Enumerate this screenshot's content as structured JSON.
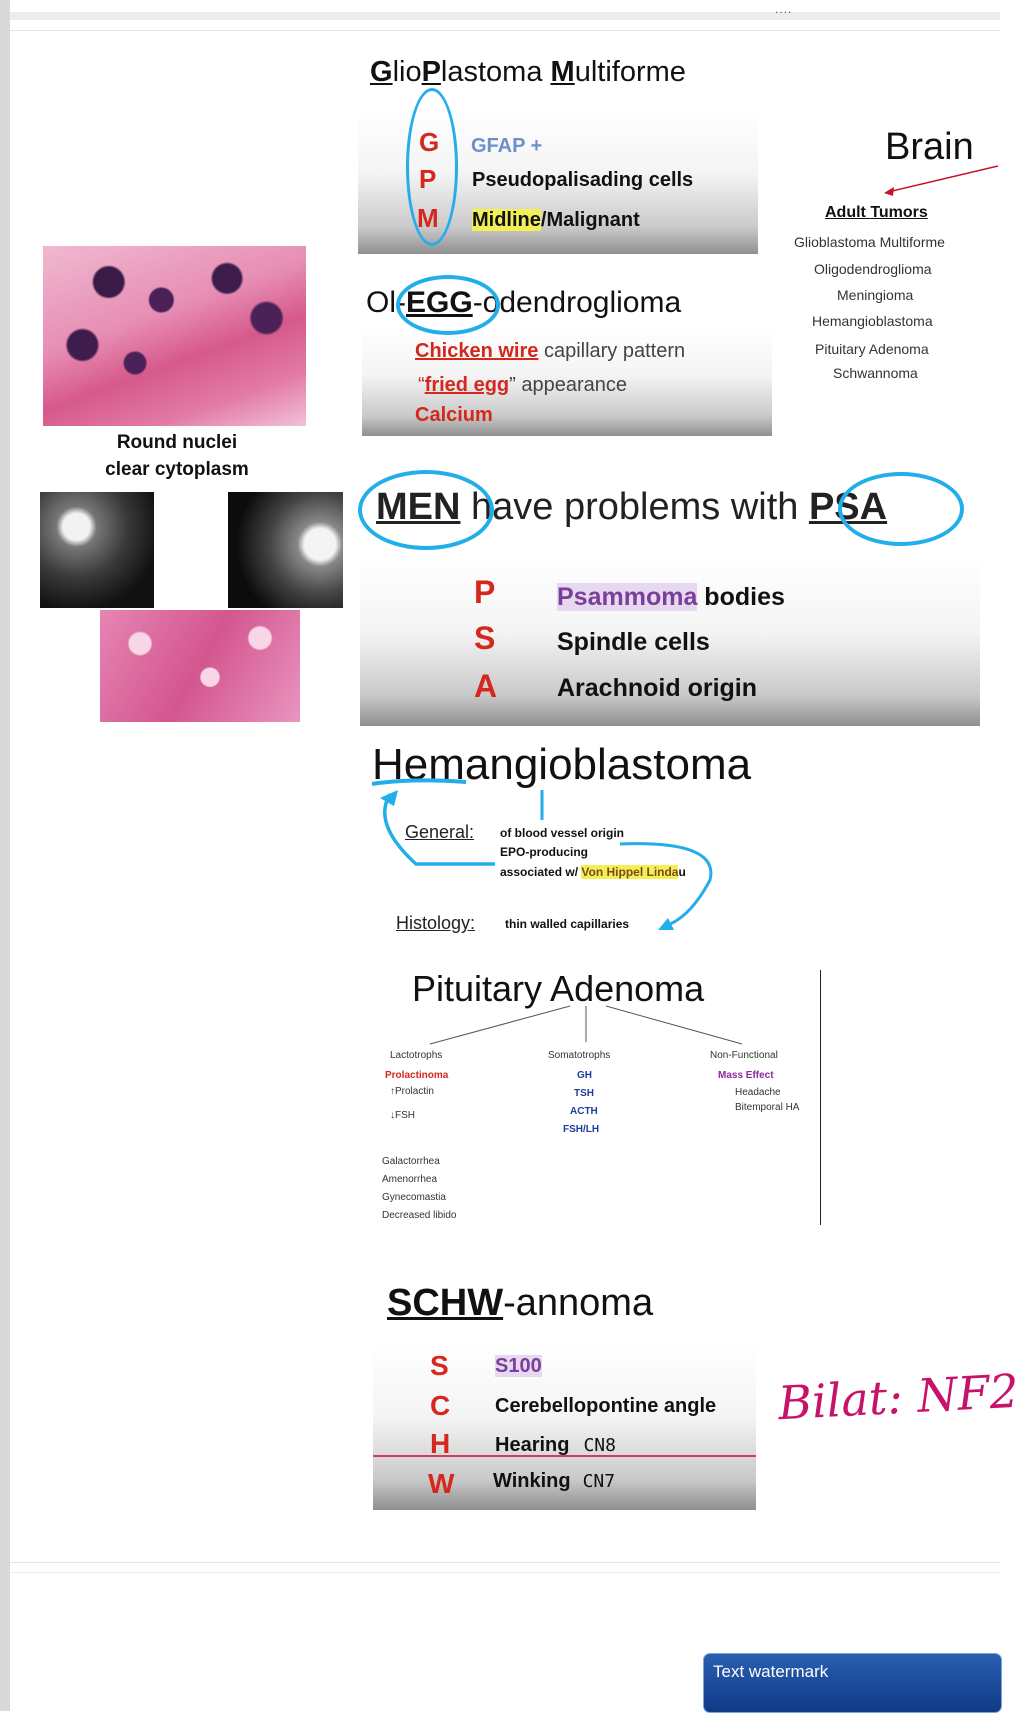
{
  "gbm": {
    "title_parts": [
      "G",
      "lio",
      "P",
      "lastoma ",
      "M",
      "ultiforme"
    ],
    "rows": [
      {
        "letter": "G",
        "text": "GFAP +"
      },
      {
        "letter": "P",
        "text": "Pseudopalisading cells"
      },
      {
        "letter": "M",
        "text_highlight": "Midline",
        "text_rest": "/Malignant"
      }
    ]
  },
  "brain_panel": {
    "heading": "Brain",
    "subheading": "Adult Tumors",
    "items": [
      "Glioblastoma Multiforme",
      "Oligodendroglioma",
      "Meningioma",
      "Hemangioblastoma",
      "Pituitary Adenoma",
      "Schwannoma"
    ]
  },
  "oligo": {
    "title_pre": "Ol-",
    "title_egg": "EGG",
    "title_post": "-odendroglioma",
    "line1_red": "Chicken wire",
    "line1_rest": " capillary pattern",
    "line2_open": "“",
    "line2_red": "fried egg",
    "line2_rest": "” appearance",
    "line3_red": "Calcium"
  },
  "left_caption": {
    "line1": "Round nuclei",
    "line2": "clear cytoplasm"
  },
  "meningioma": {
    "title_men": "MEN",
    "title_mid": " have problems with ",
    "title_psa": "PSA",
    "rows": [
      {
        "letter": "P",
        "word_hl": "Psammoma",
        "word_rest": " bodies"
      },
      {
        "letter": "S",
        "text": "Spindle cells"
      },
      {
        "letter": "A",
        "text": "Arachnoid origin"
      }
    ]
  },
  "hemangio": {
    "title": "Hemangioblastoma",
    "general_label": "General:",
    "general_lines": [
      "of blood vessel origin",
      "EPO-producing"
    ],
    "vhl_prefix": "associated w/ ",
    "vhl_hl": "Von Hippel Linda",
    "vhl_suffix": "u",
    "histology_label": "Histology:",
    "histology_text": "thin walled capillaries"
  },
  "pituitary": {
    "title": "Pituitary Adenoma",
    "col1": {
      "header": "Lactotrophs",
      "sub": "Prolactinoma",
      "a": "Prolactin",
      "b": "FSH"
    },
    "col2": {
      "header": "Somatotrophs",
      "items": [
        "GH",
        "TSH",
        "ACTH",
        "FSH/LH"
      ]
    },
    "col3": {
      "header": "Non-Functional",
      "sub": "Mass Effect",
      "items": [
        "Headache",
        "Bitemporal HA"
      ]
    },
    "symptoms": [
      "Galactorrhea",
      "Amenorrhea",
      "Gynecomastia",
      "Decreased libido"
    ],
    "arrow_up": "↑",
    "arrow_down": "↓"
  },
  "schwannoma": {
    "title_bold": "SCHW",
    "title_rest": "-annoma",
    "rows": [
      {
        "letter": "S",
        "text": "S100"
      },
      {
        "letter": "C",
        "text": "Cerebellopontine angle"
      },
      {
        "letter": "H",
        "text": "Hearing",
        "note": "CN8"
      },
      {
        "letter": "W",
        "text": "Winking",
        "note": "CN7"
      }
    ],
    "handwritten": "Bilat: NF2"
  },
  "toolbar": {
    "dots": "...."
  },
  "watermark": {
    "label": "Text watermark"
  },
  "colors": {
    "accent_blue": "#22aee8",
    "letter_red": "#d5271d",
    "ink_magenta": "#c8126a"
  }
}
